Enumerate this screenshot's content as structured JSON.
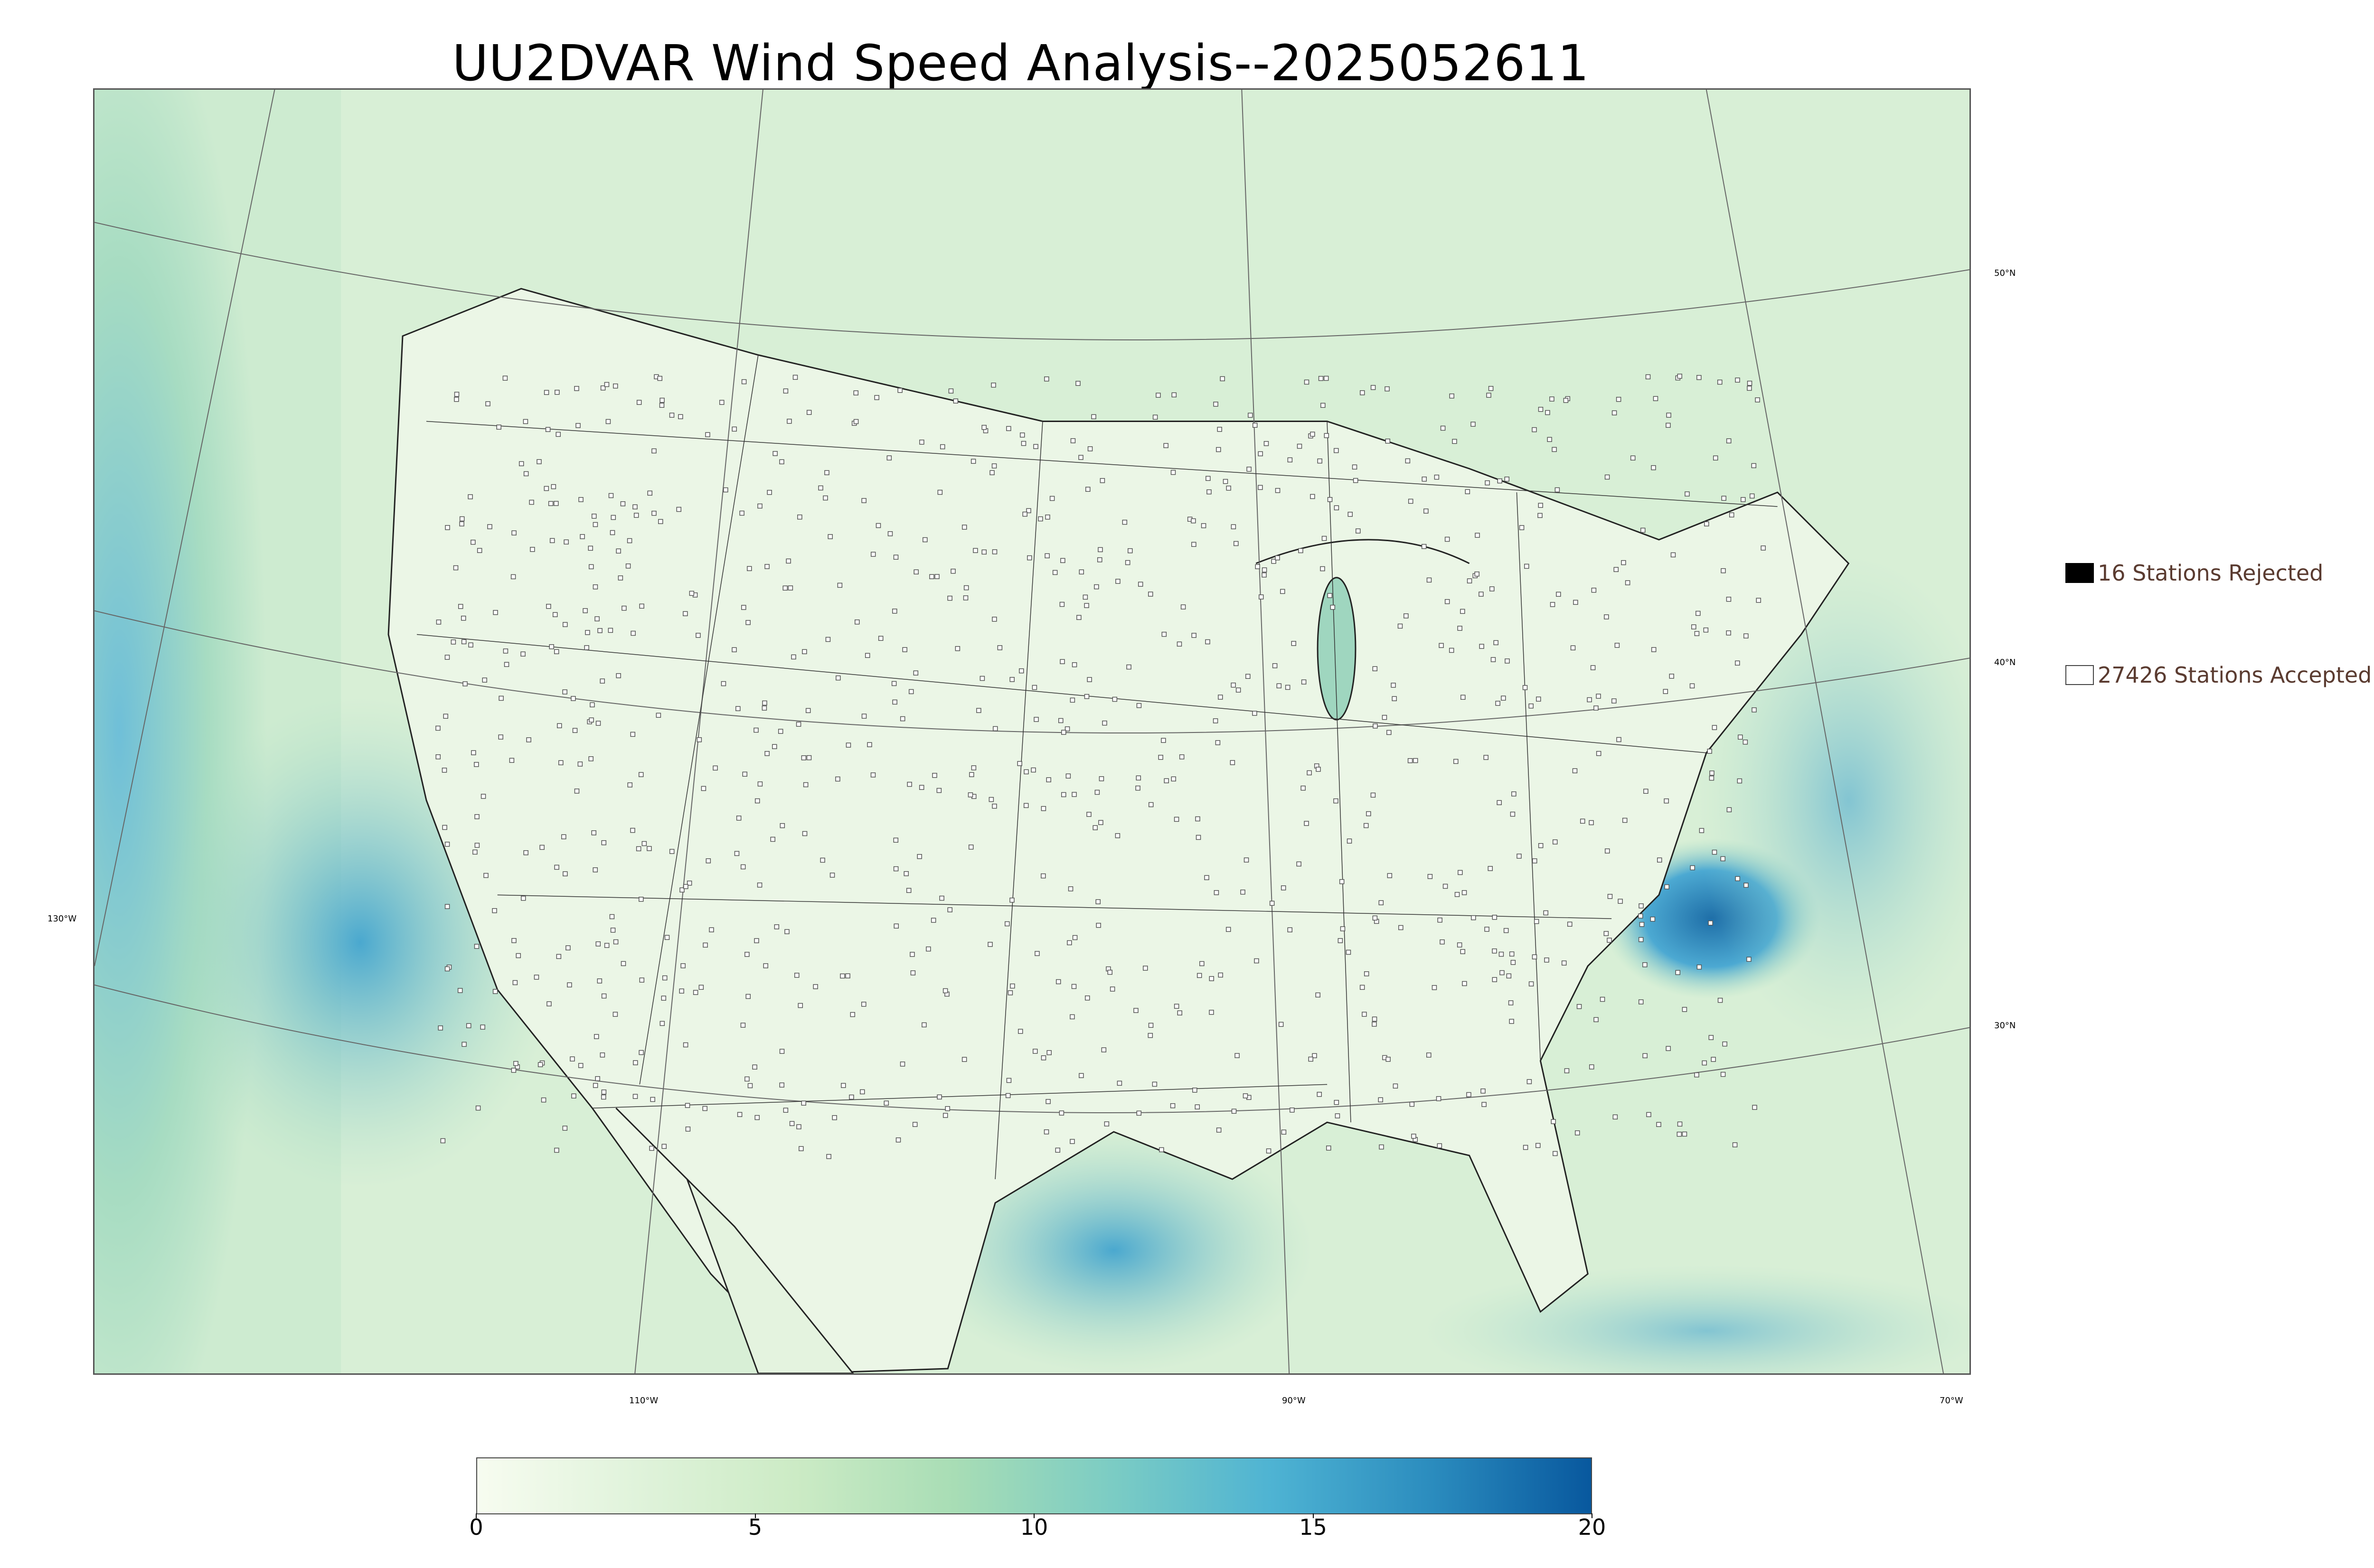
{
  "title": "UU2DVAR Wind Speed Analysis--2025052611",
  "legend": {
    "rejected_label": "16 Stations Rejected",
    "accepted_label": "27426 Stations Accepted",
    "rejected_color": "#000000",
    "accepted_color": "#ffffff"
  },
  "graticule": {
    "lat_labels": [
      "50°N",
      "40°N",
      "30°N"
    ],
    "lon_labels": [
      "130°W",
      "110°W",
      "90°W",
      "70°W"
    ]
  },
  "colorbar": {
    "ticks": [
      "0",
      "5",
      "10",
      "15",
      "20"
    ],
    "min": 0,
    "max": 20,
    "colors": [
      "#f7fcf0",
      "#e0f3db",
      "#ccebc5",
      "#a8ddb5",
      "#7bccc4",
      "#4eb3d3",
      "#2b8cbe",
      "#08589e"
    ]
  },
  "colors": {
    "land": "#e9f5e4",
    "ocean": "#a9dcc0",
    "high_wind": "#2b8cbe",
    "station_outline": "#555555"
  }
}
